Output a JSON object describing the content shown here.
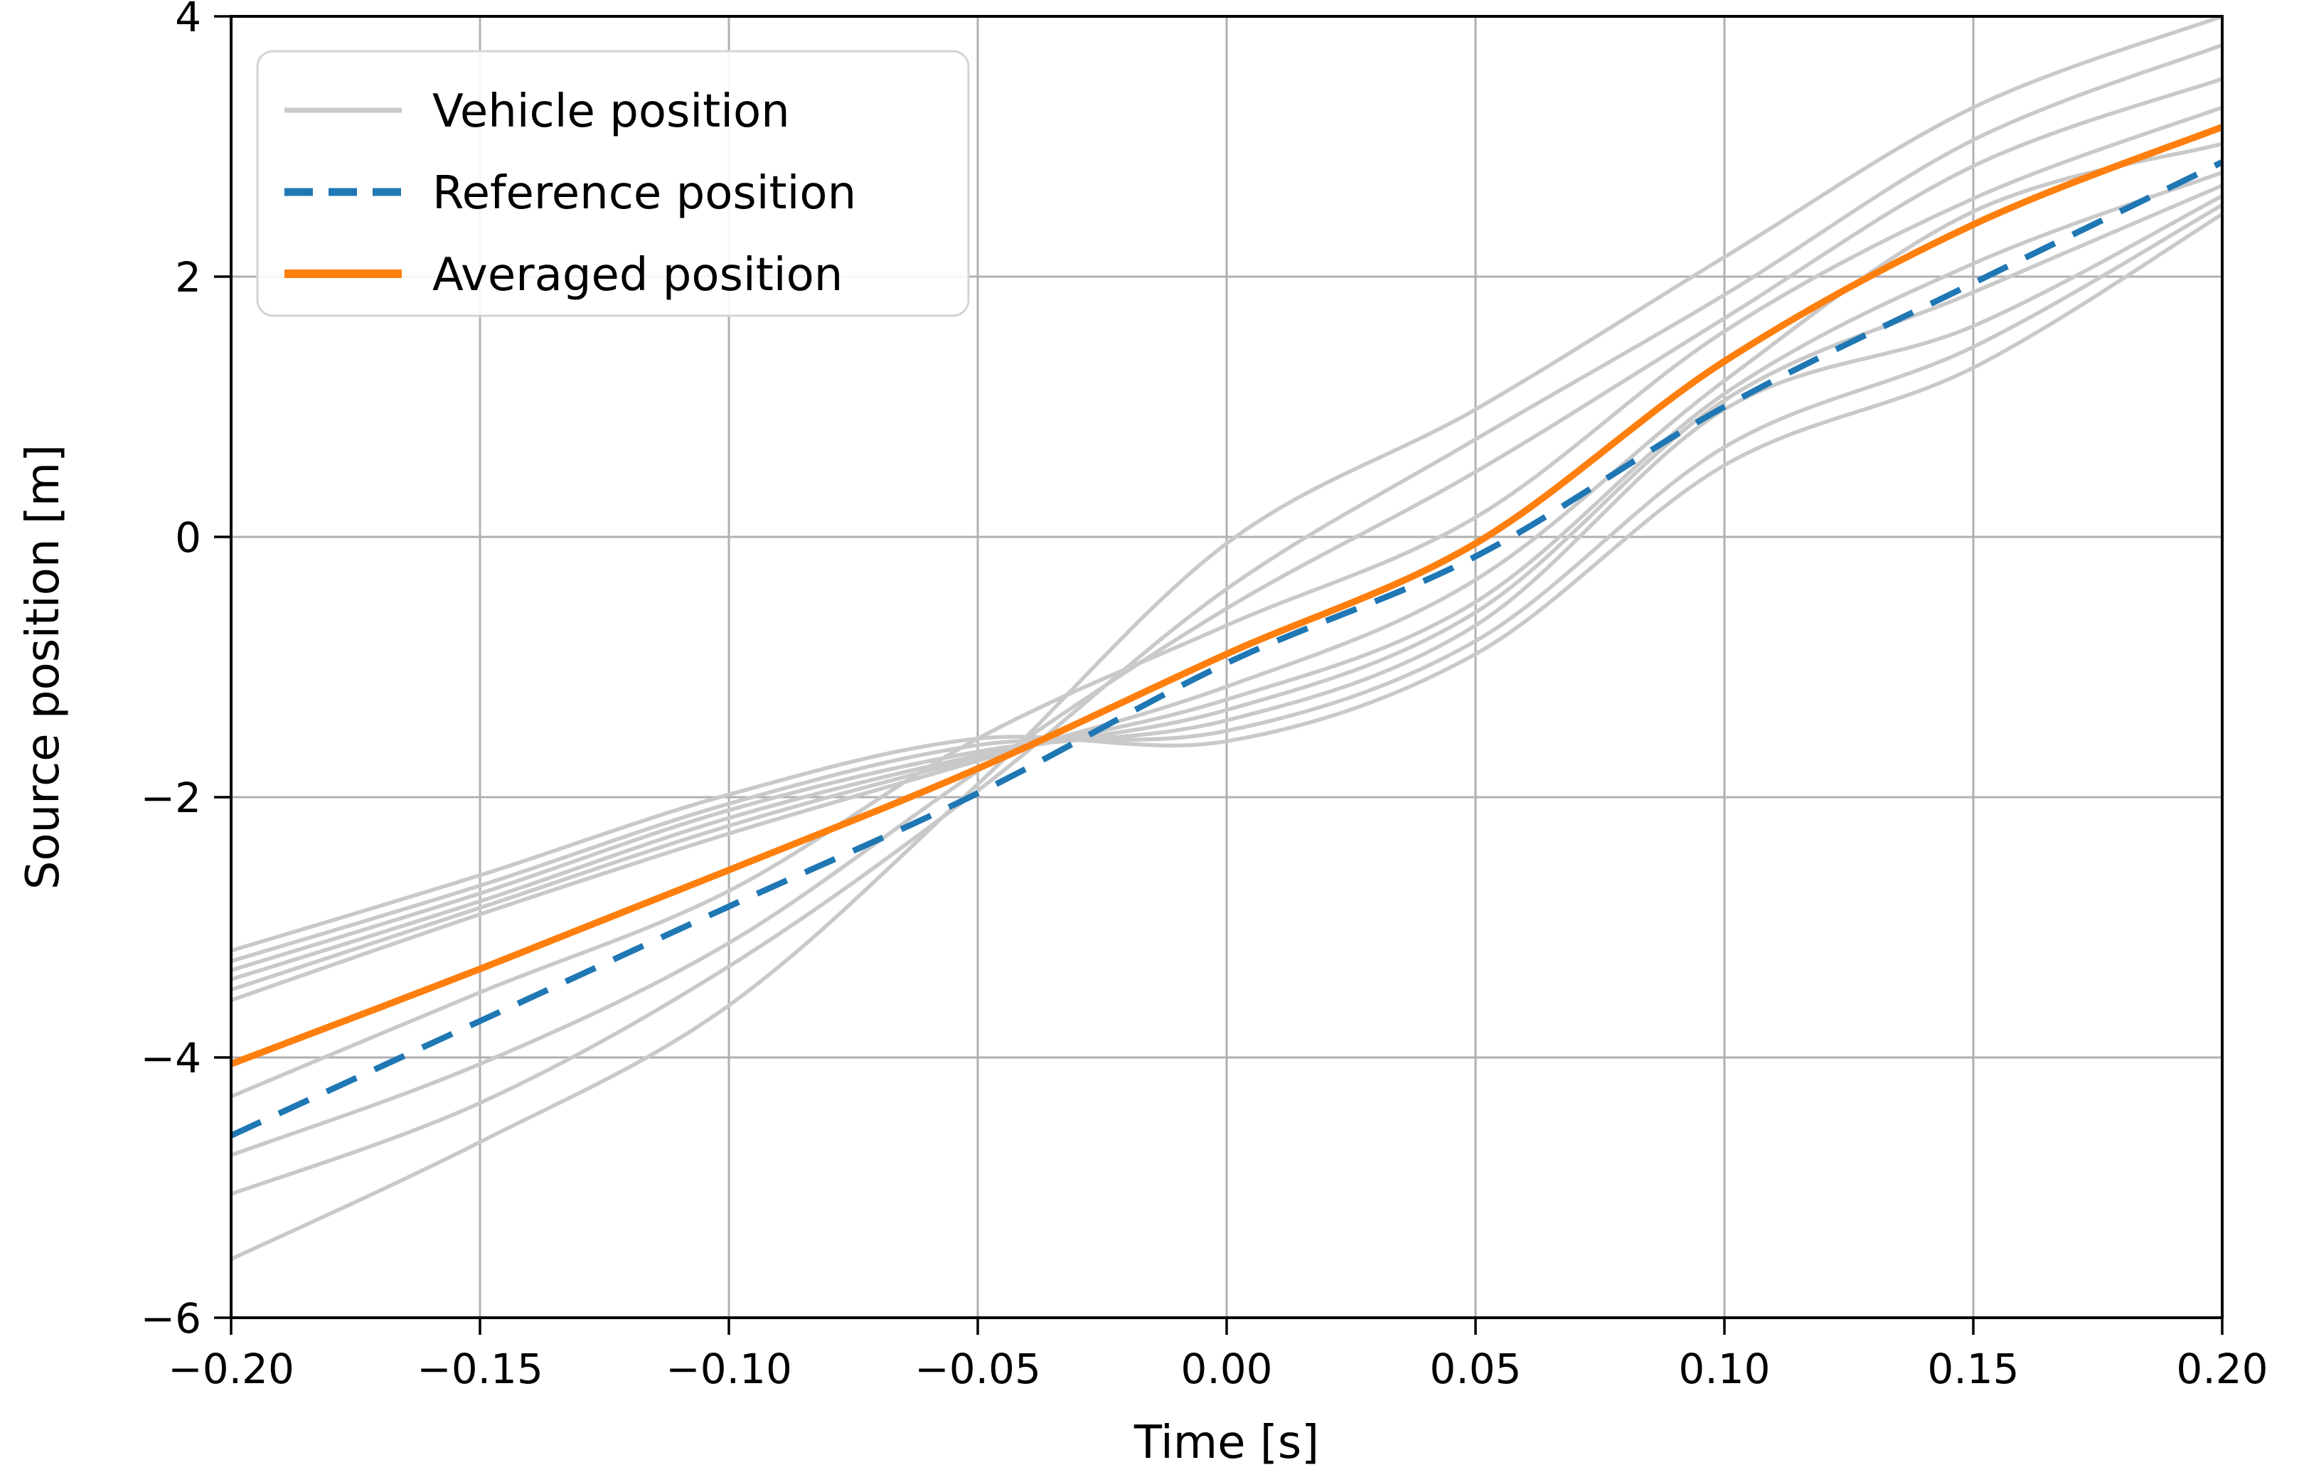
{
  "chart_data": {
    "type": "line",
    "title": "",
    "xlabel": "Time [s]",
    "ylabel": "Source position [m]",
    "xlim": [
      -0.2,
      0.2
    ],
    "ylim": [
      -6,
      4
    ],
    "grid": true,
    "legend_position": "upper-left",
    "colors": {
      "vehicle": "#c9c9c9",
      "reference": "#1f77b4",
      "averaged": "#ff7f0e",
      "gridline": "#b0b0b0",
      "spine": "#000000"
    },
    "x_ticks": [
      -0.2,
      -0.15,
      -0.1,
      -0.05,
      0.0,
      0.05,
      0.1,
      0.15,
      0.2
    ],
    "x_tick_labels": [
      "−0.20",
      "−0.15",
      "−0.10",
      "−0.05",
      "0.00",
      "0.05",
      "0.10",
      "0.15",
      "0.20"
    ],
    "y_ticks": [
      -6,
      -4,
      -2,
      0,
      2,
      4
    ],
    "y_tick_labels": [
      "−6",
      "−4",
      "−2",
      "0",
      "2",
      "4"
    ],
    "x": [
      -0.2,
      -0.15,
      -0.1,
      -0.05,
      0.0,
      0.05,
      0.1,
      0.15,
      0.2
    ],
    "series": [
      {
        "name": "Vehicle position",
        "role": "vehicle",
        "lines": [
          [
            -3.18,
            -2.6,
            -1.98,
            -1.55,
            -1.57,
            -0.9,
            0.55,
            1.3,
            2.48
          ],
          [
            -3.26,
            -2.68,
            -2.05,
            -1.6,
            -1.49,
            -0.8,
            0.69,
            1.46,
            2.55
          ],
          [
            -3.33,
            -2.74,
            -2.1,
            -1.65,
            -1.41,
            -0.68,
            0.98,
            1.62,
            2.62
          ],
          [
            -3.4,
            -2.8,
            -2.16,
            -1.68,
            -1.33,
            -0.58,
            1.05,
            1.88,
            2.7
          ],
          [
            -3.48,
            -2.85,
            -2.22,
            -1.7,
            -1.25,
            -0.5,
            1.1,
            2.1,
            2.8
          ],
          [
            -3.56,
            -2.9,
            -2.28,
            -1.72,
            -1.15,
            -0.33,
            1.2,
            2.5,
            3.02
          ],
          [
            -4.3,
            -3.5,
            -2.72,
            -1.55,
            -0.68,
            0.15,
            1.58,
            2.6,
            3.3
          ],
          [
            -4.75,
            -4.05,
            -3.12,
            -1.8,
            -0.55,
            0.5,
            1.68,
            2.85,
            3.52
          ],
          [
            -5.05,
            -4.35,
            -3.3,
            -1.95,
            -0.4,
            0.75,
            1.86,
            3.05,
            3.78
          ],
          [
            -5.55,
            -4.65,
            -3.6,
            -1.9,
            -0.05,
            0.98,
            2.15,
            3.3,
            4.0
          ]
        ]
      },
      {
        "name": "Reference position",
        "role": "reference",
        "values": [
          -4.6,
          -3.72,
          -2.84,
          -1.97,
          -0.97,
          -0.15,
          1.0,
          1.95,
          2.88
        ]
      },
      {
        "name": "Averaged position",
        "role": "averaged",
        "values": [
          -4.05,
          -3.32,
          -2.56,
          -1.78,
          -0.9,
          -0.05,
          1.35,
          2.4,
          3.15
        ]
      }
    ],
    "legend": [
      {
        "label": "Vehicle position"
      },
      {
        "label": "Reference position"
      },
      {
        "label": "Averaged position"
      }
    ]
  }
}
